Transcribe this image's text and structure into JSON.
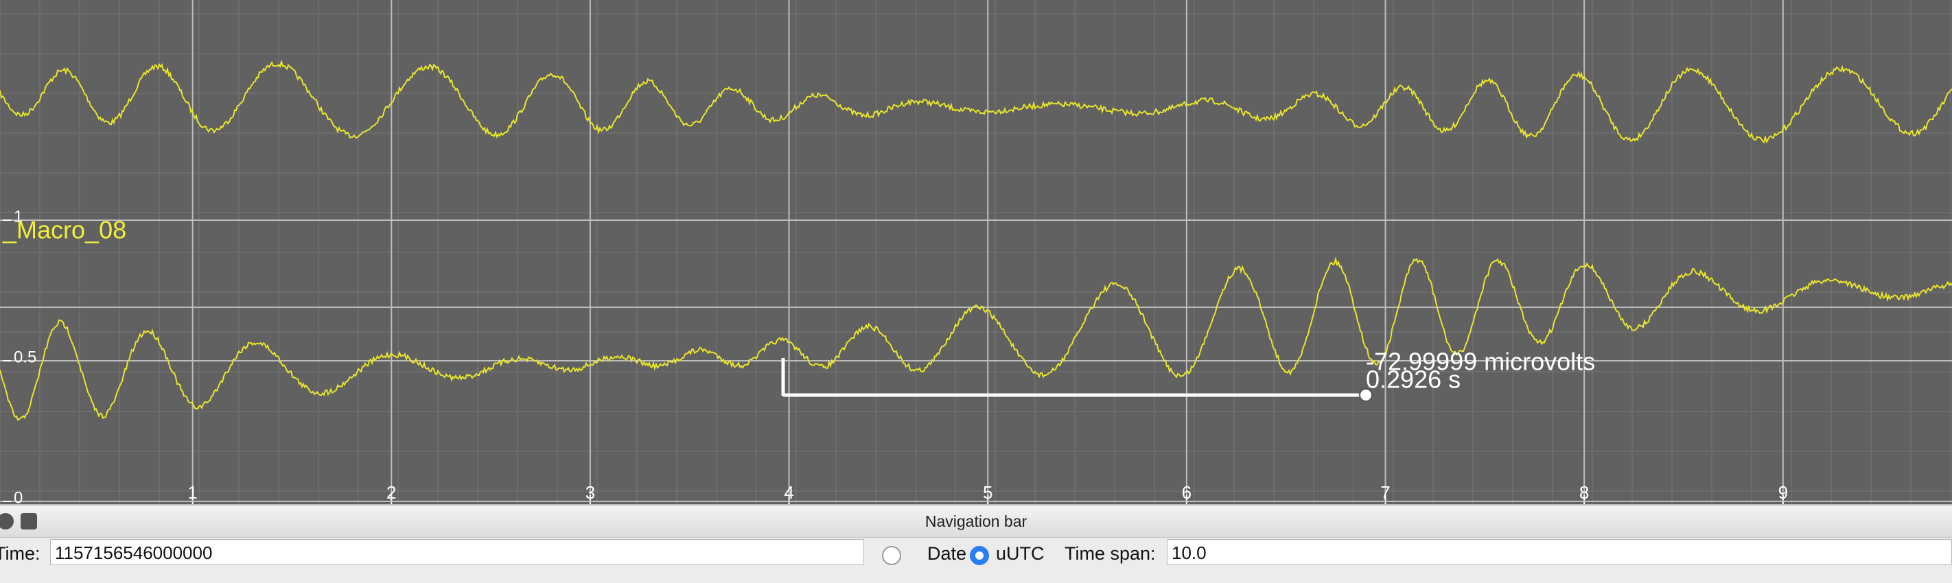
{
  "channel_label": "_Macro_08",
  "chart_data": {
    "type": "line",
    "xlim": [
      0,
      9.85
    ],
    "xticks": [
      1,
      2,
      3,
      4,
      5,
      6,
      7,
      8,
      9
    ],
    "ylim": [
      0,
      1.8
    ],
    "yticks": [
      0,
      0.5,
      1
    ],
    "grid": true,
    "annotations": [
      "-72.99999 microvolts",
      "0.2926 s"
    ]
  },
  "navigation_bar": {
    "title": "Navigation bar",
    "time_label": "Time:",
    "time_value": "1157156546000000",
    "date_option": "Date",
    "utc_option": "uUTC",
    "utc_selected": true,
    "time_span_label": "Time span:",
    "time_span_value": "10.0"
  }
}
